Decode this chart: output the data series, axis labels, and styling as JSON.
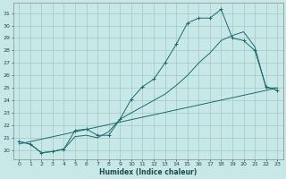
{
  "xlabel": "Humidex (Indice chaleur)",
  "bg_color": "#c8e8e8",
  "grid_color": "#a0c8c8",
  "line_color": "#1a6b6b",
  "xlim": [
    -0.5,
    23.5
  ],
  "ylim": [
    19.3,
    31.8
  ],
  "xticks": [
    0,
    1,
    2,
    3,
    4,
    5,
    6,
    7,
    8,
    9,
    10,
    11,
    12,
    13,
    14,
    15,
    16,
    17,
    18,
    19,
    20,
    21,
    22,
    23
  ],
  "yticks": [
    20,
    21,
    22,
    23,
    24,
    25,
    26,
    27,
    28,
    29,
    30,
    31
  ],
  "curve1_x": [
    0,
    1,
    2,
    3,
    4,
    5,
    6,
    7,
    8,
    9,
    10,
    11,
    12,
    13,
    14,
    15,
    16,
    17,
    18,
    19,
    20,
    21,
    22,
    23
  ],
  "curve1_y": [
    20.7,
    20.5,
    19.8,
    19.9,
    20.1,
    21.6,
    21.7,
    21.2,
    21.2,
    22.5,
    24.1,
    25.1,
    25.7,
    27.0,
    28.5,
    30.2,
    30.6,
    30.6,
    31.3,
    29.0,
    28.8,
    28.0,
    25.1,
    24.8
  ],
  "curve2_x": [
    0,
    1,
    2,
    3,
    4,
    5,
    6,
    7,
    8,
    9,
    10,
    11,
    12,
    13,
    14,
    15,
    16,
    17,
    18,
    19,
    20,
    21,
    22,
    23
  ],
  "curve2_y": [
    20.7,
    20.5,
    19.8,
    19.9,
    20.1,
    21.1,
    21.2,
    21.0,
    21.5,
    22.5,
    23.0,
    23.5,
    24.0,
    24.5,
    25.2,
    26.0,
    27.0,
    27.8,
    28.8,
    29.2,
    29.5,
    28.3,
    25.0,
    25.0
  ],
  "line3_x": [
    0,
    23
  ],
  "line3_y": [
    20.5,
    25.0
  ]
}
